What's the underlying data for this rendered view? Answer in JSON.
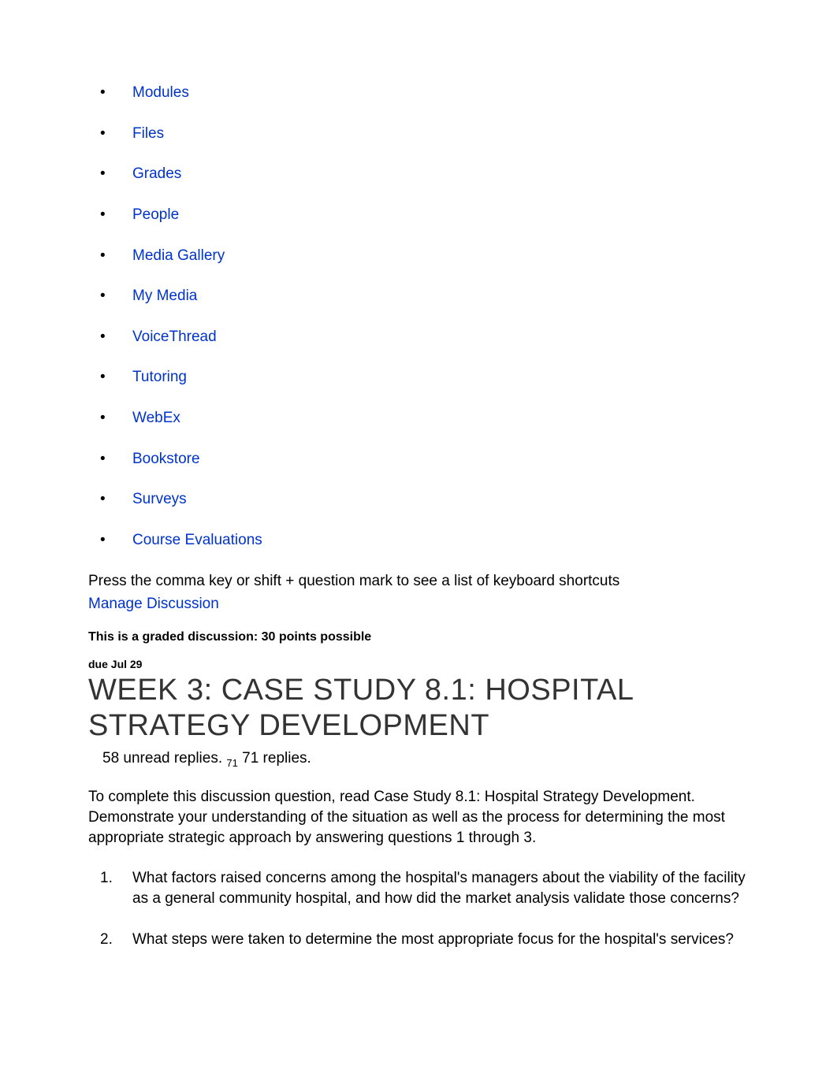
{
  "nav": {
    "items": [
      {
        "label": "Modules"
      },
      {
        "label": "Files"
      },
      {
        "label": "Grades"
      },
      {
        "label": "People"
      },
      {
        "label": "Media Gallery"
      },
      {
        "label": "My Media"
      },
      {
        "label": "VoiceThread"
      },
      {
        "label": "Tutoring"
      },
      {
        "label": "WebEx"
      },
      {
        "label": "Bookstore"
      },
      {
        "label": "Surveys"
      },
      {
        "label": "Course Evaluations"
      }
    ]
  },
  "hint": "Press the comma key or shift + question mark to see a list of keyboard shortcuts",
  "manage_label": "Manage Discussion",
  "graded_text": "This is a graded discussion: 30 points possible",
  "due_text": "due Jul 29",
  "title": "WEEK 3: CASE STUDY 8.1: HOSPITAL STRATEGY DEVELOPMENT",
  "replies": {
    "unread": "58 unread replies.",
    "count_small": "71",
    "total": "71 replies."
  },
  "intro": "To complete this discussion question, read Case Study 8.1: Hospital Strategy Development. Demonstrate your understanding of the situation as well as the process for determining the most appropriate strategic approach by answering questions 1 through 3.",
  "questions": [
    "What factors raised concerns among the hospital's managers about the viability of the facility as a general community hospital, and how did the market analysis validate those concerns?",
    "What steps were taken to determine the most appropriate focus for the hospital's services?"
  ],
  "colors": {
    "link": "#0033cc",
    "text": "#000000",
    "title": "#333333",
    "background": "#ffffff"
  }
}
